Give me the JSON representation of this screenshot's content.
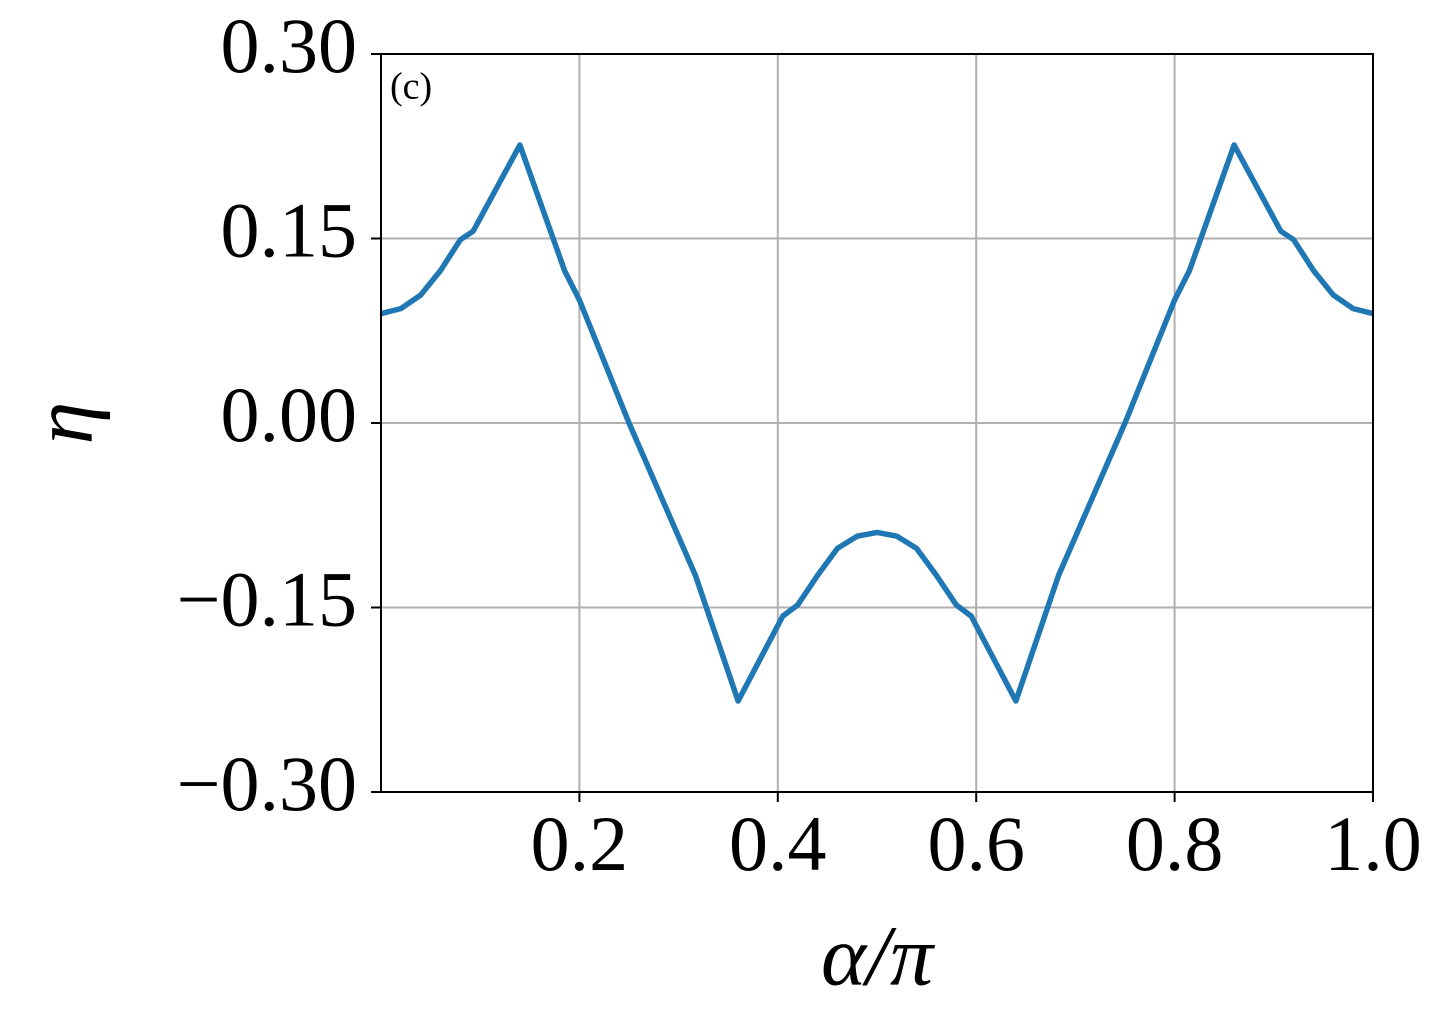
{
  "chart_data": {
    "type": "line",
    "annotation": "(c)",
    "x_label": "α/π",
    "y_label": "η",
    "x": [
      0,
      0.02,
      0.04,
      0.06,
      0.08,
      0.093,
      0.14,
      0.185,
      0.2,
      0.25,
      0.317,
      0.36,
      0.405,
      0.42,
      0.44,
      0.46,
      0.48,
      0.5,
      0.52,
      0.54,
      0.56,
      0.58,
      0.595,
      0.64,
      0.683,
      0.75,
      0.8,
      0.815,
      0.86,
      0.907,
      0.92,
      0.94,
      0.96,
      0.98,
      1.0
    ],
    "series": [
      {
        "color": "#1f77b4",
        "values": [
          0.089,
          0.093,
          0.104,
          0.124,
          0.149,
          0.156,
          0.226,
          0.124,
          0.1,
          0,
          -0.124,
          -0.226,
          -0.157,
          -0.148,
          -0.124,
          -0.102,
          -0.092,
          -0.089,
          -0.092,
          -0.102,
          -0.124,
          -0.148,
          -0.157,
          -0.226,
          -0.124,
          0,
          0.1,
          0.124,
          0.226,
          0.156,
          0.149,
          0.124,
          0.104,
          0.093,
          0.089
        ]
      }
    ],
    "xlim": [
      0,
      1
    ],
    "ylim": [
      -0.3,
      0.3
    ],
    "xticks": [
      0.2,
      0.4,
      0.6,
      0.8,
      {
        "value": 1,
        "label": "1.0"
      }
    ],
    "yticks": [
      {
        "value": -0.3,
        "label": "−0.30"
      },
      {
        "value": -0.15,
        "label": "−0.15"
      },
      {
        "value": 0,
        "label": "0.00"
      },
      {
        "value": 0.15,
        "label": "0.15"
      },
      {
        "value": 0.3,
        "label": "0.30"
      }
    ],
    "grid": true
  }
}
